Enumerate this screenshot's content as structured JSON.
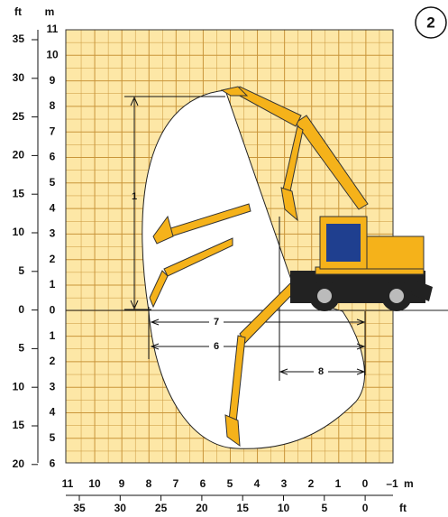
{
  "badge": "2",
  "left_axis": {
    "ft_unit": "ft",
    "m_unit": "m",
    "ft_labels": [
      "35",
      "30",
      "25",
      "20",
      "15",
      "10",
      "5",
      "0",
      "5",
      "10",
      "15",
      "20"
    ],
    "m_labels": [
      "11",
      "10",
      "9",
      "8",
      "7",
      "6",
      "5",
      "4",
      "3",
      "2",
      "1",
      "0",
      "1",
      "2",
      "3",
      "4",
      "5",
      "6"
    ]
  },
  "bottom_axis": {
    "m_labels": [
      "11",
      "10",
      "9",
      "8",
      "7",
      "6",
      "5",
      "4",
      "3",
      "2",
      "1",
      "0",
      "–1"
    ],
    "m_unit": "m",
    "ft_labels": [
      "35",
      "30",
      "25",
      "20",
      "15",
      "10",
      "5",
      "0"
    ],
    "ft_unit": "ft"
  },
  "dimensions": [
    "1",
    "6",
    "7",
    "8"
  ]
}
